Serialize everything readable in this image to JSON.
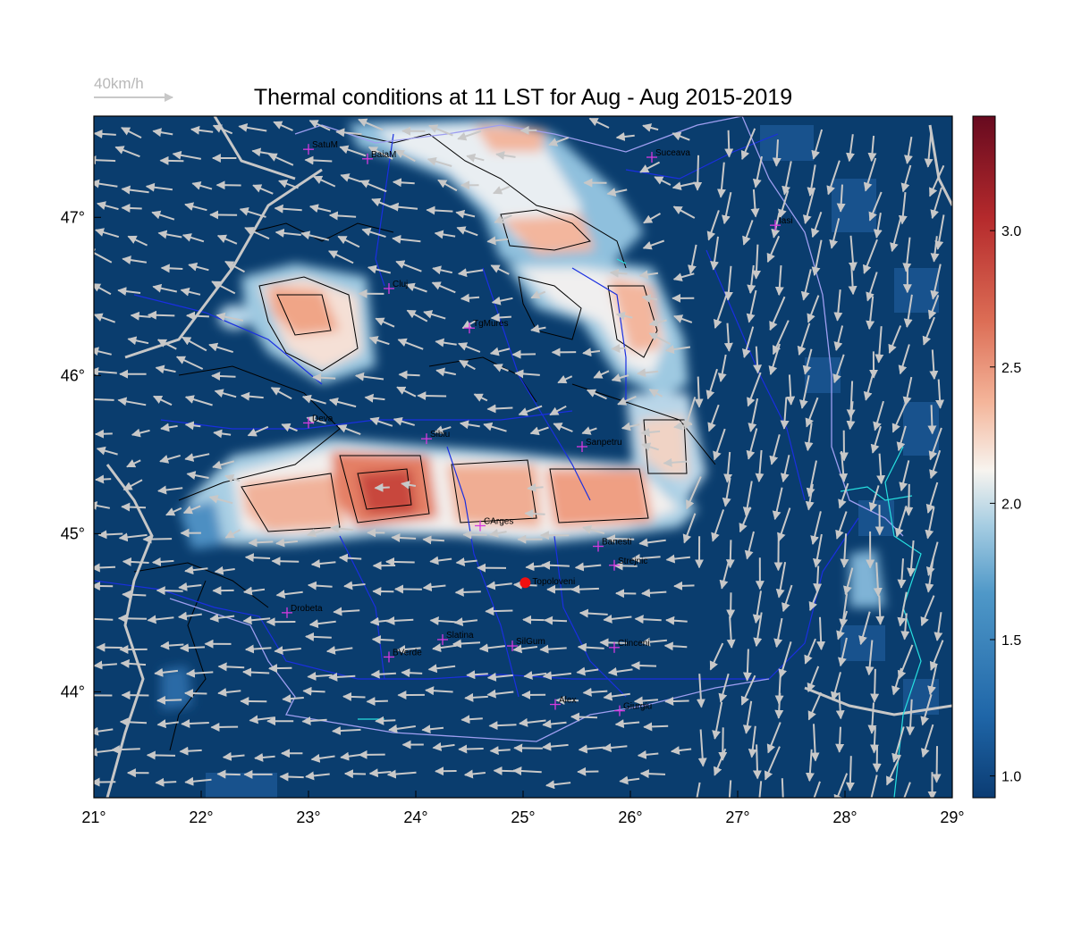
{
  "title": "Thermal conditions at 11 LST for Aug - Aug  2015-2019",
  "wind_reference": "40km/h",
  "x_ticks": [
    "21°",
    "22°",
    "23°",
    "24°",
    "25°",
    "26°",
    "27°",
    "28°",
    "29°"
  ],
  "y_ticks": [
    "44°",
    "45°",
    "46°",
    "47°"
  ],
  "colorbar": {
    "ticks": [
      "1.0",
      "1.5",
      "2.0",
      "2.5",
      "3.0"
    ],
    "range": [
      0.92,
      3.42
    ],
    "colors": [
      "#0b3c73",
      "#1f66a8",
      "#4f98c8",
      "#a6cde2",
      "#f7f4ef",
      "#f4b59a",
      "#dc6d55",
      "#b52a2c",
      "#670a1f"
    ]
  },
  "map": {
    "lon_range": [
      21,
      29
    ],
    "lat_range": [
      43.33,
      47.64
    ],
    "background_color": "#0a3d6e",
    "cities": [
      {
        "name": "SatuM",
        "lon": 23.0,
        "lat": 47.43
      },
      {
        "name": "BaiaM",
        "lon": 23.55,
        "lat": 47.37
      },
      {
        "name": "Suceava",
        "lon": 26.2,
        "lat": 47.38
      },
      {
        "name": "Iasi",
        "lon": 27.35,
        "lat": 46.95
      },
      {
        "name": "Cluj",
        "lon": 23.75,
        "lat": 46.55
      },
      {
        "name": "TgMures",
        "lon": 24.5,
        "lat": 46.3
      },
      {
        "name": "Deva",
        "lon": 23.0,
        "lat": 45.7
      },
      {
        "name": "Sibiu",
        "lon": 24.1,
        "lat": 45.6
      },
      {
        "name": "Sanpetru",
        "lon": 25.55,
        "lat": 45.55
      },
      {
        "name": "CArges",
        "lon": 24.6,
        "lat": 45.05
      },
      {
        "name": "Banesti",
        "lon": 25.7,
        "lat": 44.92
      },
      {
        "name": "Strejnic",
        "lon": 25.85,
        "lat": 44.8
      },
      {
        "name": "Drobeta",
        "lon": 22.8,
        "lat": 44.5
      },
      {
        "name": "Slatina",
        "lon": 24.25,
        "lat": 44.33
      },
      {
        "name": "SilGum",
        "lon": 24.9,
        "lat": 44.29
      },
      {
        "name": "Clinceni",
        "lon": 25.85,
        "lat": 44.28
      },
      {
        "name": "BVerde",
        "lon": 23.75,
        "lat": 44.22
      },
      {
        "name": "Alex",
        "lon": 25.3,
        "lat": 43.92
      },
      {
        "name": "Giurgiu",
        "lon": 25.9,
        "lat": 43.88
      }
    ],
    "site": {
      "name": "Topoloveni",
      "lon": 25.02,
      "lat": 44.69
    }
  }
}
